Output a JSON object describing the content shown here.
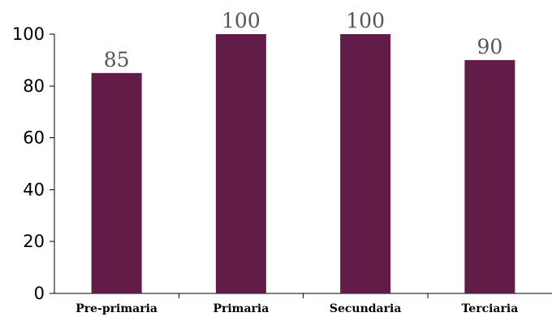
{
  "chart_data": {
    "type": "bar",
    "categories": [
      "Pre-primaria",
      "Primaria",
      "Secundaria",
      "Terciaria"
    ],
    "values": [
      85,
      100,
      100,
      90
    ],
    "data_labels": [
      "85",
      "100",
      "100",
      "90"
    ],
    "title": "",
    "xlabel": "",
    "ylabel": "",
    "ylim": [
      0,
      100
    ],
    "yticks": [
      0,
      20,
      40,
      60,
      80,
      100
    ],
    "grid": false,
    "bar_color": "#621c48"
  }
}
